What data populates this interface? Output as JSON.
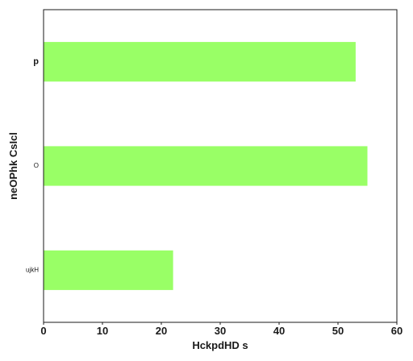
{
  "chart_data": {
    "type": "bar",
    "orientation": "horizontal",
    "title": "",
    "xlabel": "HckpdHD s",
    "ylabel": "neOPhk CsIcl",
    "categories": [
      "p",
      "O",
      "ujkH"
    ],
    "values": [
      53,
      55,
      22
    ],
    "xlim": [
      0,
      60
    ],
    "xticks": [
      0,
      10,
      20,
      30,
      40,
      50,
      60
    ],
    "bar_color": "#99ff66",
    "grid": false,
    "legend": "none"
  }
}
